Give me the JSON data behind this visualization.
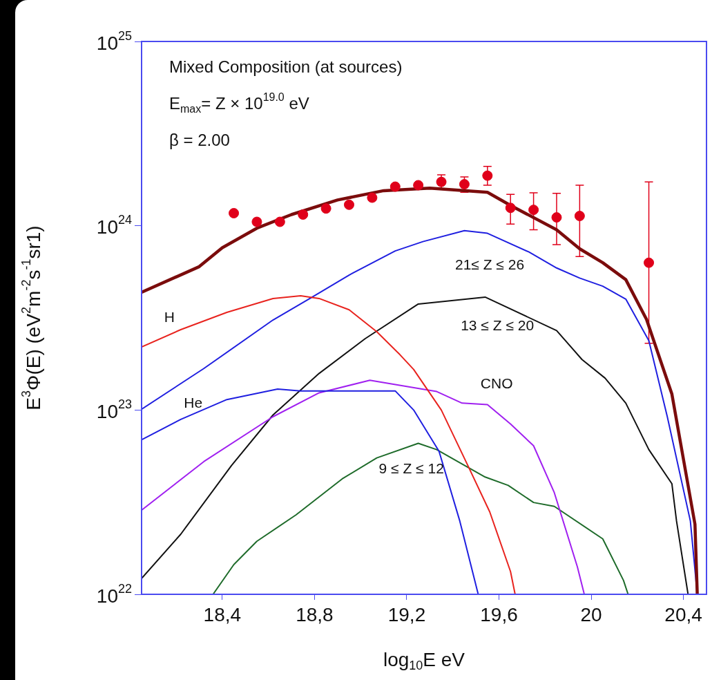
{
  "chart_data": {
    "type": "line",
    "xlabel": "log$_{10}$E eV",
    "ylabel": "E$^{3}$Φ(E) (eV$^{2}$m$^{-2}$s$^{-1}$sr1)",
    "annotations": [
      "Mixed Composition (at sources)",
      "E$_{max}$= Z × 10$^{19.0}$ eV",
      "β = 2.00"
    ],
    "log": "y",
    "grid": false,
    "xlim": [
      18.05,
      20.5
    ],
    "xticks": [
      {
        "value": 18.4,
        "label": "18,4"
      },
      {
        "value": 18.8,
        "label": "18,8"
      },
      {
        "value": 19.2,
        "label": "19,2"
      },
      {
        "value": 19.6,
        "label": "19,6"
      },
      20,
      {
        "value": 20.4,
        "label": "20,4"
      }
    ],
    "ylim": [
      1e+22,
      1e+25
    ],
    "yticks": [
      {
        "value": 1e+22,
        "label": "10$^{22}$"
      },
      {
        "value": 1e+23,
        "label": "10$^{23}$"
      },
      {
        "value": 1e+24,
        "label": "10$^{24}$"
      },
      {
        "value": 1e+25,
        "label": "10$^{25}$"
      }
    ],
    "series": [
      {
        "color": "#7b0c0c",
        "x": [
          18.05,
          18.3,
          18.4,
          18.55,
          18.7,
          18.9,
          19.1,
          19.3,
          19.55,
          19.65,
          19.85,
          19.95,
          20.05,
          20.15,
          20.24,
          20.35,
          20.45,
          20.46
        ],
        "values": [
          4.35e+23,
          6e+23,
          7.6e+23,
          9.7e+23,
          1.15e+24,
          1.38e+24,
          1.55e+24,
          1.6e+24,
          1.52e+24,
          1.29e+24,
          9.5e+23,
          7.5e+23,
          6.3e+23,
          5.1e+23,
          3.1e+23,
          1.22e+23,
          2.4e+22,
          1e+22
        ]
      },
      {
        "name": "H",
        "color": "#e8231e",
        "x": [
          18.05,
          18.22,
          18.42,
          18.62,
          18.74,
          18.82,
          18.95,
          19.07,
          19.17,
          19.23,
          19.35,
          19.47,
          19.56,
          19.65,
          19.67
        ],
        "values": [
          2.2e+23,
          2.73e+23,
          3.39e+23,
          4.03e+23,
          4.17e+23,
          4.03e+23,
          3.5e+23,
          2.66e+23,
          2e+23,
          1.66e+23,
          1e+23,
          4.85e+22,
          2.8e+22,
          1.33e+22,
          1e+22
        ]
      },
      {
        "name": "He",
        "color": "#1f1fe0",
        "x": [
          18.05,
          18.22,
          18.42,
          18.64,
          18.74,
          19.15,
          19.23,
          19.34,
          19.43,
          19.51
        ],
        "values": [
          6.9e+22,
          8.9e+22,
          1.14e+23,
          1.3e+23,
          1.27e+23,
          1.27e+23,
          1e+23,
          5.97e+22,
          2.5e+22,
          1e+22
        ]
      },
      {
        "name": "CNO",
        "color": "#a020f0",
        "x": [
          18.05,
          18.32,
          18.62,
          18.82,
          19.04,
          19.28,
          19.33,
          19.44,
          19.55,
          19.65,
          19.75,
          19.84,
          19.94,
          19.97
        ],
        "values": [
          2.86e+22,
          5.25e+22,
          9.2e+22,
          1.24e+23,
          1.45e+23,
          1.29e+23,
          1.26e+23,
          1.09e+23,
          1.07e+23,
          8.4e+22,
          6.4e+22,
          3.56e+22,
          1.41e+22,
          1e+22
        ]
      },
      {
        "name": "9 ≤ Z ≤ 12",
        "color": "#1e6b2a",
        "x": [
          18.36,
          18.45,
          18.55,
          18.72,
          18.92,
          19.07,
          19.25,
          19.33,
          19.54,
          19.64,
          19.75,
          19.84,
          20.05,
          20.14,
          20.16
        ],
        "values": [
          1e+22,
          1.45e+22,
          1.94e+22,
          2.7e+22,
          4.23e+22,
          5.5e+22,
          6.6e+22,
          6.1e+22,
          4.33e+22,
          3.9e+22,
          3.15e+22,
          3e+22,
          2e+22,
          1.19e+22,
          1e+22
        ]
      },
      {
        "name": "13 ≤ Z ≤ 20",
        "color": "#111111",
        "x": [
          18.05,
          18.22,
          18.44,
          18.62,
          18.82,
          19.02,
          19.25,
          19.54,
          19.85,
          19.96,
          20.06,
          20.15,
          20.25,
          20.35,
          20.37,
          20.42
        ],
        "values": [
          1.22e+22,
          2.12e+22,
          5e+22,
          9.4e+22,
          1.58e+23,
          2.44e+23,
          3.76e+23,
          4.1e+23,
          2.7e+23,
          1.88e+23,
          1.49e+23,
          1.09e+23,
          6.1e+22,
          3.98e+22,
          2.5e+22,
          1e+22
        ]
      },
      {
        "name": "21≤ Z ≤ 26",
        "color": "#1f1fe0",
        "x": [
          18.05,
          18.32,
          18.62,
          18.78,
          18.95,
          19.15,
          19.27,
          19.45,
          19.55,
          19.73,
          19.85,
          19.95,
          20.05,
          20.15,
          20.25,
          20.33,
          20.43,
          20.46
        ],
        "values": [
          1.01e+23,
          1.68e+23,
          3.08e+23,
          4.03e+23,
          5.4e+23,
          7.3e+23,
          8.2e+23,
          9.4e+23,
          9.1e+23,
          7.2e+23,
          5.9e+23,
          5.2e+23,
          4.7e+23,
          4e+23,
          2.38e+23,
          9.2e+22,
          2.5e+22,
          1e+22
        ]
      },
      {
        "type": "scatter",
        "color": "#e0001a",
        "marker": "circle",
        "x": [
          18.45,
          18.55,
          18.65,
          18.75,
          18.85,
          18.95,
          19.05,
          19.15,
          19.25,
          19.35,
          19.45,
          19.55,
          19.65,
          19.75,
          19.85,
          19.95,
          20.25
        ],
        "values": [
          1.17e+24,
          1.05e+24,
          1.05e+24,
          1.15e+24,
          1.24e+24,
          1.3e+24,
          1.42e+24,
          1.63e+24,
          1.66e+24,
          1.73e+24,
          1.68e+24,
          1.87e+24,
          1.25e+24,
          1.22e+24,
          1.11e+24,
          1.13e+24,
          6.3e+23
        ],
        "errors": [
          null,
          null,
          null,
          null,
          null,
          null,
          null,
          null,
          null,
          [
            1.59e+24,
            1.89e+24
          ],
          [
            1.52e+24,
            1.84e+24
          ],
          [
            1.66e+24,
            2.1e+24
          ],
          [
            1.02e+24,
            1.48e+24
          ],
          [
            9.5e+23,
            1.51e+24
          ],
          [
            7.9e+23,
            1.5e+24
          ],
          [
            6.8e+23,
            1.66e+24
          ],
          [
            2.3e+23,
            1.73e+24
          ]
        ]
      }
    ]
  }
}
